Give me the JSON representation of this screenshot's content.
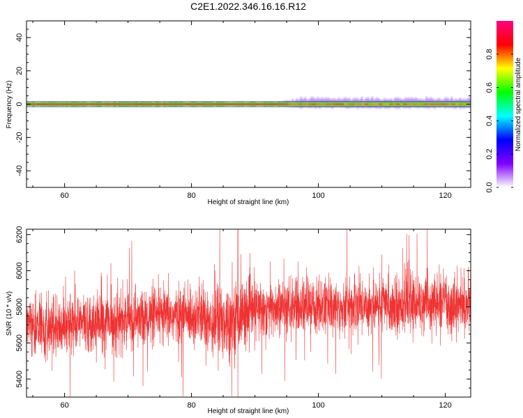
{
  "figure": {
    "title": "C2E1.2022.346.16.16.R12"
  },
  "chart_data": [
    {
      "type": "heatmap",
      "name": "spectrogram",
      "xlabel": "Height of straight line (km)",
      "ylabel": "Frequency (Hz)",
      "xlim": [
        54,
        124
      ],
      "ylim": [
        -50,
        50
      ],
      "x_ticks": [
        60,
        80,
        100,
        120
      ],
      "y_ticks": [
        -40,
        -20,
        0,
        20,
        40
      ],
      "grid": false,
      "band": {
        "center_hz": 0,
        "core_halfwidth_hz": 0.8,
        "note": "narrow high-amplitude band at 0 Hz; weak low-amplitude spreading to about 4 Hz above 95 km"
      },
      "colorbar": {
        "label": "Normalized spectral amplitude",
        "range": [
          0,
          1
        ],
        "ticks": [
          0.0,
          0.2,
          0.4,
          0.6,
          0.8
        ],
        "colormap": [
          "#ffffff",
          "#8000ff",
          "#0000ff",
          "#00ffff",
          "#00ff00",
          "#ffff00",
          "#ff0000",
          "#ff0080"
        ]
      }
    },
    {
      "type": "line",
      "name": "snr",
      "xlabel": "Height of straight line (km)",
      "ylabel": "SNR (10 * v/v)",
      "xlim": [
        54,
        124
      ],
      "ylim": [
        5300,
        6230
      ],
      "x_ticks": [
        60,
        80,
        100,
        120
      ],
      "y_ticks": [
        5400,
        5600,
        5800,
        6000,
        6200
      ],
      "grid": false,
      "series": [
        {
          "color": "#ee3333",
          "x": [
            54,
            56,
            58,
            60,
            62,
            64,
            66,
            68,
            70,
            72,
            74,
            76,
            78,
            80,
            82,
            84,
            86,
            88,
            90,
            92,
            94,
            96,
            98,
            100,
            102,
            104,
            106,
            108,
            110,
            112,
            114,
            116,
            118,
            120,
            122,
            124
          ],
          "y": [
            5700,
            5690,
            5700,
            5705,
            5710,
            5715,
            5720,
            5720,
            5725,
            5735,
            5740,
            5745,
            5750,
            5755,
            5740,
            5720,
            5730,
            5760,
            5780,
            5790,
            5790,
            5795,
            5800,
            5800,
            5800,
            5805,
            5810,
            5810,
            5815,
            5810,
            5815,
            5820,
            5815,
            5820,
            5815,
            5810
          ],
          "spread": [
            130,
            140,
            140,
            135,
            140,
            140,
            140,
            145,
            140,
            140,
            145,
            140,
            140,
            145,
            160,
            220,
            180,
            160,
            150,
            145,
            140,
            140,
            140,
            140,
            140,
            140,
            140,
            140,
            140,
            140,
            140,
            140,
            140,
            140,
            140,
            140
          ],
          "max": 6230,
          "min": 5300
        }
      ]
    }
  ]
}
